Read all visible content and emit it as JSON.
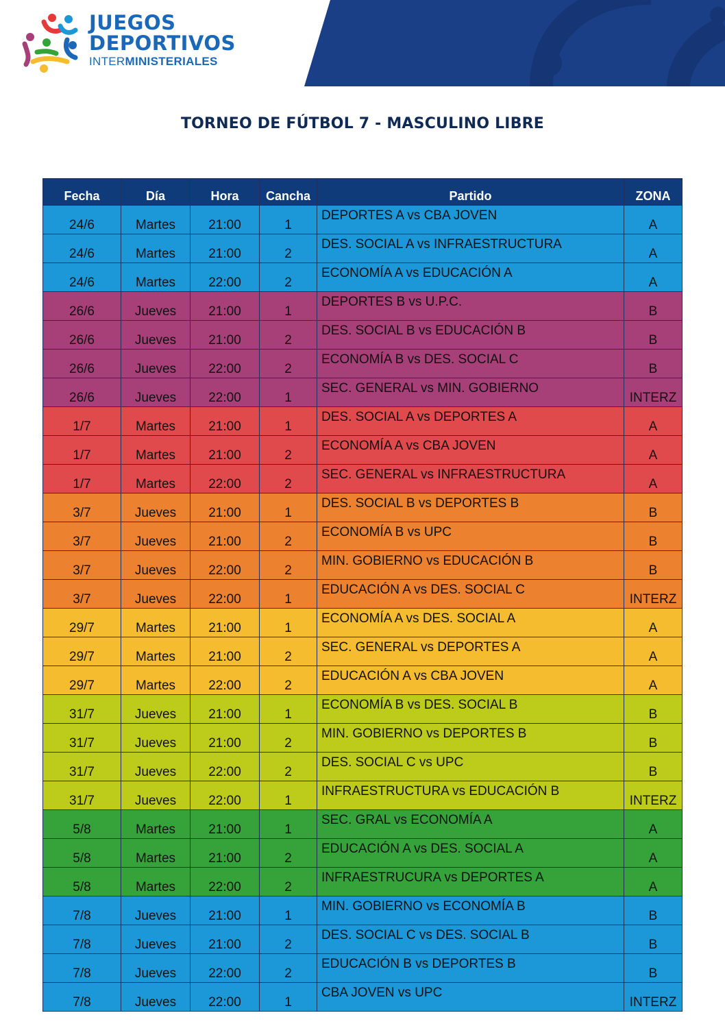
{
  "logo": {
    "line1": "JUEGOS",
    "line2": "DEPORTIVOS",
    "line3_light": "INTER",
    "line3_bold": "MINISTERIALES"
  },
  "title": "TORNEO DE FÚTBOL 7 - MASCULINO LIBRE",
  "colors": {
    "header_band": "#1b3f86",
    "table_header": "#0f3b7a",
    "title_text": "#0f2a55",
    "brand_blue": "#1b68b9"
  },
  "table": {
    "headers": [
      "Fecha",
      "Día",
      "Hora",
      "Cancha",
      "Partido",
      "ZONA"
    ],
    "rows": [
      {
        "fecha": "24/6",
        "dia": "Martes",
        "hora": "21:00",
        "cancha": "1",
        "partido": "DEPORTES A vs CBA JOVEN",
        "zona": "A",
        "color": "blue"
      },
      {
        "fecha": "24/6",
        "dia": "Martes",
        "hora": "21:00",
        "cancha": "2",
        "partido": "DES. SOCIAL A vs INFRAESTRUCTURA",
        "zona": "A",
        "color": "blue"
      },
      {
        "fecha": "24/6",
        "dia": "Martes",
        "hora": "22:00",
        "cancha": "2",
        "partido": "ECONOMÍA A vs EDUCACIÓN A",
        "zona": "A",
        "color": "blue"
      },
      {
        "fecha": "26/6",
        "dia": "Jueves",
        "hora": "21:00",
        "cancha": "1",
        "partido": "DEPORTES B vs U.P.C.",
        "zona": "B",
        "color": "purple"
      },
      {
        "fecha": "26/6",
        "dia": "Jueves",
        "hora": "21:00",
        "cancha": "2",
        "partido": "DES. SOCIAL B vs EDUCACIÓN B",
        "zona": "B",
        "color": "purple"
      },
      {
        "fecha": "26/6",
        "dia": "Jueves",
        "hora": "22:00",
        "cancha": "2",
        "partido": "ECONOMÍA B vs DES. SOCIAL C",
        "zona": "B",
        "color": "purple"
      },
      {
        "fecha": "26/6",
        "dia": "Jueves",
        "hora": "22:00",
        "cancha": "1",
        "partido": "SEC. GENERAL vs MIN. GOBIERNO",
        "zona": "INTERZ",
        "color": "purple"
      },
      {
        "fecha": "1/7",
        "dia": "Martes",
        "hora": "21:00",
        "cancha": "1",
        "partido": "DES. SOCIAL A vs DEPORTES A",
        "zona": "A",
        "color": "red"
      },
      {
        "fecha": "1/7",
        "dia": "Martes",
        "hora": "21:00",
        "cancha": "2",
        "partido": "ECONOMÍA A vs CBA JOVEN",
        "zona": "A",
        "color": "red"
      },
      {
        "fecha": "1/7",
        "dia": "Martes",
        "hora": "22:00",
        "cancha": "2",
        "partido": "SEC. GENERAL vs INFRAESTRUCTURA",
        "zona": "A",
        "color": "red"
      },
      {
        "fecha": "3/7",
        "dia": "Jueves",
        "hora": "21:00",
        "cancha": "1",
        "partido": "DES. SOCIAL B vs DEPORTES B",
        "zona": "B",
        "color": "orange"
      },
      {
        "fecha": "3/7",
        "dia": "Jueves",
        "hora": "21:00",
        "cancha": "2",
        "partido": "ECONOMÍA B vs UPC",
        "zona": "B",
        "color": "orange"
      },
      {
        "fecha": "3/7",
        "dia": "Jueves",
        "hora": "22:00",
        "cancha": "2",
        "partido": "MIN. GOBIERNO vs EDUCACIÓN B",
        "zona": "B",
        "color": "orange"
      },
      {
        "fecha": "3/7",
        "dia": "Jueves",
        "hora": "22:00",
        "cancha": "1",
        "partido": "EDUCACIÓN A vs DES. SOCIAL C",
        "zona": "INTERZ",
        "color": "orange"
      },
      {
        "fecha": "29/7",
        "dia": "Martes",
        "hora": "21:00",
        "cancha": "1",
        "partido": "ECONOMÍA A vs DES. SOCIAL A",
        "zona": "A",
        "color": "yellow"
      },
      {
        "fecha": "29/7",
        "dia": "Martes",
        "hora": "21:00",
        "cancha": "2",
        "partido": "SEC. GENERAL vs DEPORTES A",
        "zona": "A",
        "color": "yellow"
      },
      {
        "fecha": "29/7",
        "dia": "Martes",
        "hora": "22:00",
        "cancha": "2",
        "partido": "EDUCACIÓN A vs CBA JOVEN",
        "zona": "A",
        "color": "yellow"
      },
      {
        "fecha": "31/7",
        "dia": "Jueves",
        "hora": "21:00",
        "cancha": "1",
        "partido": "ECONOMÍA B vs DES. SOCIAL B",
        "zona": "B",
        "color": "lime"
      },
      {
        "fecha": "31/7",
        "dia": "Jueves",
        "hora": "21:00",
        "cancha": "2",
        "partido": "MIN. GOBIERNO vs DEPORTES B",
        "zona": "B",
        "color": "lime"
      },
      {
        "fecha": "31/7",
        "dia": "Jueves",
        "hora": "22:00",
        "cancha": "2",
        "partido": "DES. SOCIAL C vs UPC",
        "zona": "B",
        "color": "lime"
      },
      {
        "fecha": "31/7",
        "dia": "Jueves",
        "hora": "22:00",
        "cancha": "1",
        "partido": "INFRAESTRUCTURA vs EDUCACIÓN B",
        "zona": "INTERZ",
        "color": "lime"
      },
      {
        "fecha": "5/8",
        "dia": "Martes",
        "hora": "21:00",
        "cancha": "1",
        "partido": "SEC. GRAL vs ECONOMÍA A",
        "zona": "A",
        "color": "green"
      },
      {
        "fecha": "5/8",
        "dia": "Martes",
        "hora": "21:00",
        "cancha": "2",
        "partido": "EDUCACIÓN A vs DES. SOCIAL A",
        "zona": "A",
        "color": "green"
      },
      {
        "fecha": "5/8",
        "dia": "Martes",
        "hora": "22:00",
        "cancha": "2",
        "partido": "INFRAESTRUCURA vs DEPORTES A",
        "zona": "A",
        "color": "green"
      },
      {
        "fecha": "7/8",
        "dia": "Jueves",
        "hora": "21:00",
        "cancha": "1",
        "partido": "MIN. GOBIERNO vs ECONOMÍA B",
        "zona": "B",
        "color": "blue"
      },
      {
        "fecha": "7/8",
        "dia": "Jueves",
        "hora": "21:00",
        "cancha": "2",
        "partido": "DES. SOCIAL C vs DES. SOCIAL B",
        "zona": "B",
        "color": "blue"
      },
      {
        "fecha": "7/8",
        "dia": "Jueves",
        "hora": "22:00",
        "cancha": "2",
        "partido": "EDUCACIÓN B vs DEPORTES B",
        "zona": "B",
        "color": "blue"
      },
      {
        "fecha": "7/8",
        "dia": "Jueves",
        "hora": "22:00",
        "cancha": "1",
        "partido": "CBA JOVEN vs UPC",
        "zona": "INTERZ",
        "color": "blue"
      }
    ]
  }
}
